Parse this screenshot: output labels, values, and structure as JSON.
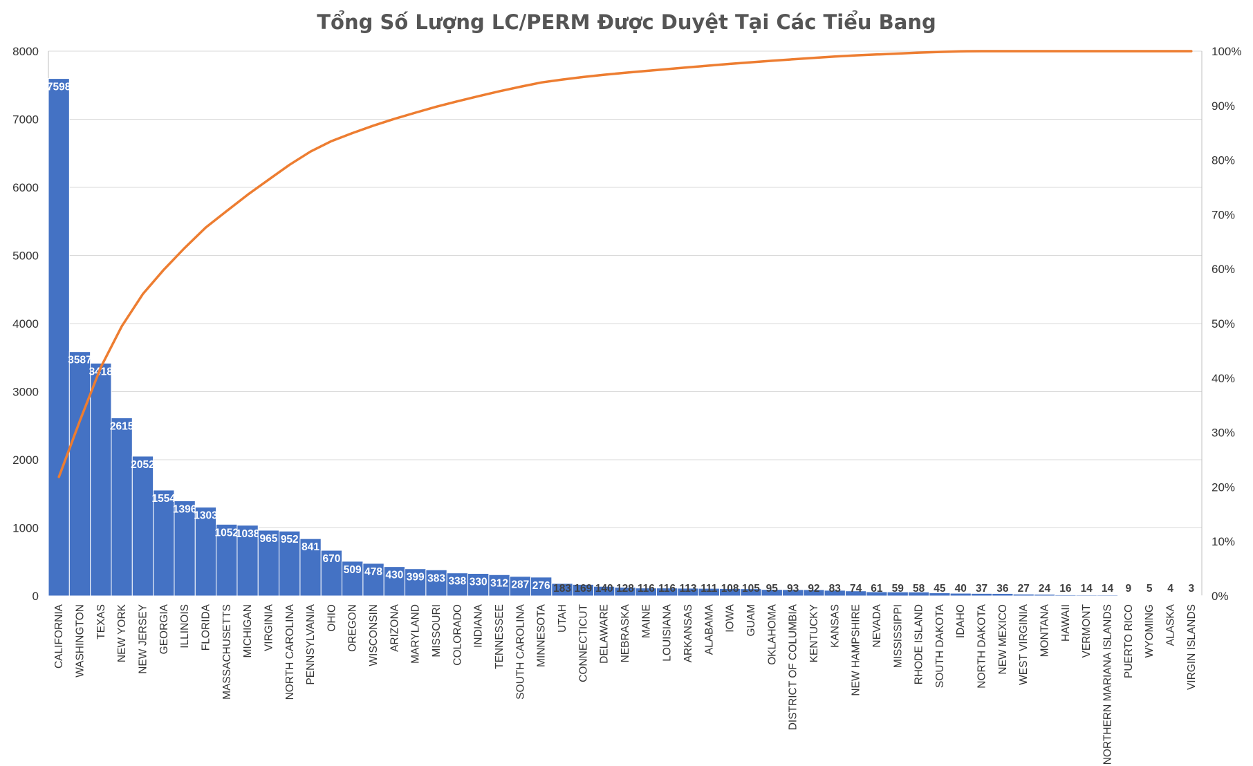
{
  "chart_data": {
    "type": "bar",
    "title": "Tổng Số Lượng LC/PERM Được Duyệt Tại Các Tiểu Bang",
    "xlabel": "",
    "ylabel": "",
    "ylim": [
      0,
      8000
    ],
    "yticks": [
      "0",
      "1000",
      "2000",
      "3000",
      "4000",
      "5000",
      "6000",
      "7000",
      "8000"
    ],
    "y2lim": [
      0,
      1
    ],
    "y2ticks": [
      "0%",
      "10%",
      "20%",
      "30%",
      "40%",
      "50%",
      "60%",
      "70%",
      "80%",
      "90%",
      "100%"
    ],
    "grid": true,
    "categories": [
      "CALIFORNIA",
      "WASHINGTON",
      "TEXAS",
      "NEW YORK",
      "NEW JERSEY",
      "GEORGIA",
      "ILLINOIS",
      "FLORIDA",
      "MASSACHUSETTS",
      "MICHIGAN",
      "VIRGINIA",
      "NORTH CAROLINA",
      "PENNSYLVANIA",
      "OHIO",
      "OREGON",
      "WISCONSIN",
      "ARIZONA",
      "MARYLAND",
      "MISSOURI",
      "COLORADO",
      "INDIANA",
      "TENNESSEE",
      "SOUTH CAROLINA",
      "MINNESOTA",
      "UTAH",
      "CONNECTICUT",
      "DELAWARE",
      "NEBRASKA",
      "MAINE",
      "LOUISIANA",
      "ARKANSAS",
      "ALABAMA",
      "IOWA",
      "GUAM",
      "OKLAHOMA",
      "DISTRICT OF COLUMBIA",
      "KENTUCKY",
      "KANSAS",
      "NEW HAMPSHIRE",
      "NEVADA",
      "MISSISSIPPI",
      "RHODE ISLAND",
      "SOUTH DAKOTA",
      "IDAHO",
      "NORTH DAKOTA",
      "NEW MEXICO",
      "WEST VIRGINIA",
      "MONTANA",
      "HAWAII",
      "VERMONT",
      "NORTHERN MARIANA ISLANDS",
      "PUERTO RICO",
      "WYOMING",
      "ALASKA",
      "VIRGIN ISLANDS"
    ],
    "series": [
      {
        "type": "bar",
        "color": "#4472C4",
        "values": [
          7598,
          3587,
          3418,
          2615,
          2052,
          1554,
          1396,
          1303,
          1052,
          1038,
          965,
          952,
          841,
          670,
          509,
          478,
          430,
          399,
          383,
          338,
          330,
          312,
          287,
          276,
          183,
          169,
          140,
          128,
          116,
          116,
          113,
          111,
          108,
          105,
          95,
          93,
          92,
          83,
          74,
          61,
          59,
          58,
          45,
          40,
          37,
          36,
          27,
          24,
          16,
          14,
          14,
          9,
          5,
          4,
          3
        ]
      },
      {
        "type": "line",
        "axis": "right",
        "color": "#ED7D31",
        "values": [
          0.2184,
          0.3215,
          0.4198,
          0.495,
          0.554,
          0.5987,
          0.6388,
          0.6763,
          0.7065,
          0.7364,
          0.7641,
          0.7915,
          0.8157,
          0.8349,
          0.8496,
          0.8633,
          0.8757,
          0.8871,
          0.8981,
          0.9079,
          0.9173,
          0.9263,
          0.9346,
          0.9425,
          0.9478,
          0.9526,
          0.9567,
          0.9603,
          0.9637,
          0.967,
          0.9703,
          0.9735,
          0.9766,
          0.9796,
          0.9823,
          0.985,
          0.9877,
          0.9901,
          0.9922,
          0.9939,
          0.9956,
          0.9973,
          0.9986,
          0.9997,
          1.0008,
          1.0018,
          1.0026,
          1.0033,
          1.0038,
          1.0042,
          1.0046,
          1.0048,
          1.005,
          1.0051,
          1.0052
        ]
      }
    ]
  }
}
